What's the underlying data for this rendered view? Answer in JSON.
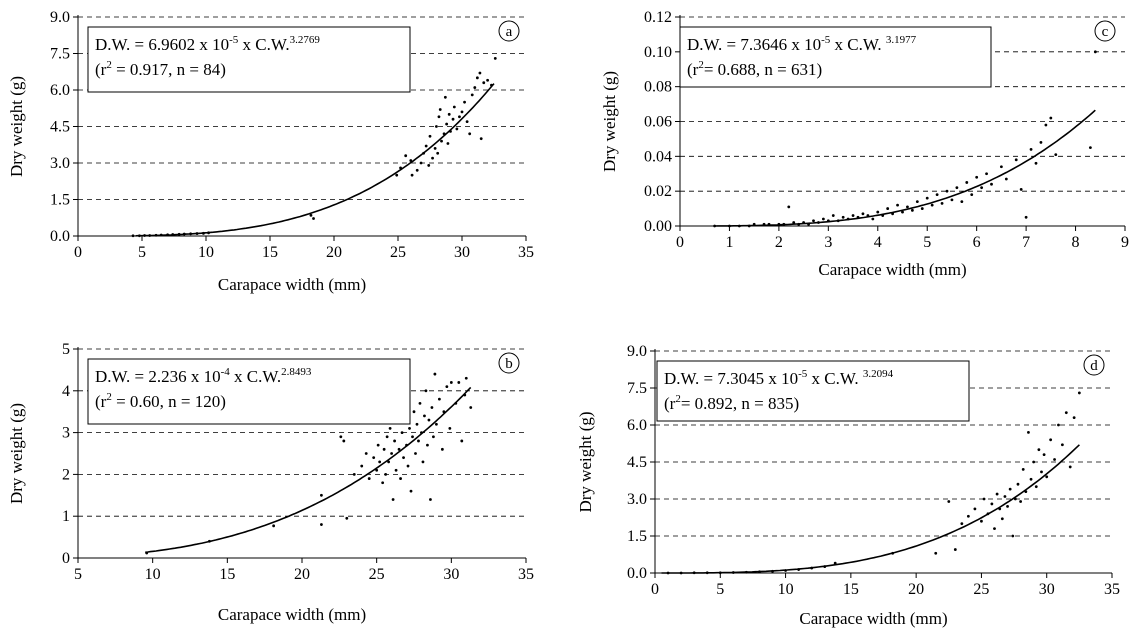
{
  "chart_data": [
    {
      "type": "scatter",
      "panel": "a",
      "xlabel": "Carapace width (mm)",
      "ylabel": "Dry weight (g)",
      "xlim": [
        0,
        35
      ],
      "ylim": [
        0,
        9
      ],
      "xticks": [
        0,
        5,
        10,
        15,
        20,
        25,
        30,
        35
      ],
      "yticks": [
        0.0,
        1.5,
        3.0,
        4.5,
        6.0,
        7.5,
        9.0
      ],
      "ytick_labels": [
        "0.0",
        "1.5",
        "3.0",
        "4.5",
        "6.0",
        "7.5",
        "9.0"
      ],
      "grid": "horizontal-dashed",
      "equation": {
        "line1_pre": "D.W. = 6.9602 x 10",
        "exp1": "-5",
        "line1_mid": " x C.W.",
        "exp2": "3.2769",
        "line2_pre": "(r",
        "exp3": "2",
        "line2_post": " = 0.917, n = 84)"
      },
      "fit": {
        "a": 6.9602e-05,
        "b": 3.2769,
        "x_range": [
          4.5,
          32.5
        ]
      },
      "points": [
        [
          4.3,
          0.01
        ],
        [
          4.8,
          0.01
        ],
        [
          5.2,
          0.02
        ],
        [
          5.6,
          0.02
        ],
        [
          6.1,
          0.03
        ],
        [
          6.5,
          0.04
        ],
        [
          7.0,
          0.05
        ],
        [
          7.4,
          0.06
        ],
        [
          7.9,
          0.07
        ],
        [
          8.3,
          0.08
        ],
        [
          8.8,
          0.09
        ],
        [
          9.3,
          0.1
        ],
        [
          9.8,
          0.11
        ],
        [
          10.2,
          0.13
        ],
        [
          18.2,
          0.85
        ],
        [
          18.4,
          0.72
        ],
        [
          24.9,
          2.5
        ],
        [
          25.2,
          2.8
        ],
        [
          25.6,
          3.3
        ],
        [
          26.0,
          3.1
        ],
        [
          26.1,
          2.5
        ],
        [
          26.5,
          2.7
        ],
        [
          26.8,
          3.0
        ],
        [
          27.0,
          3.4
        ],
        [
          27.2,
          3.7
        ],
        [
          27.4,
          2.9
        ],
        [
          27.5,
          4.1
        ],
        [
          27.7,
          3.2
        ],
        [
          27.9,
          3.6
        ],
        [
          28.0,
          4.5
        ],
        [
          28.1,
          3.4
        ],
        [
          28.2,
          4.9
        ],
        [
          28.3,
          5.2
        ],
        [
          28.4,
          3.9
        ],
        [
          28.6,
          4.2
        ],
        [
          28.7,
          5.7
        ],
        [
          28.8,
          4.6
        ],
        [
          28.9,
          3.8
        ],
        [
          29.0,
          5.0
        ],
        [
          29.1,
          4.3
        ],
        [
          29.3,
          4.8
        ],
        [
          29.4,
          5.3
        ],
        [
          29.6,
          4.4
        ],
        [
          29.8,
          4.9
        ],
        [
          30.0,
          5.1
        ],
        [
          30.2,
          5.5
        ],
        [
          30.4,
          4.7
        ],
        [
          30.6,
          4.2
        ],
        [
          30.8,
          5.8
        ],
        [
          31.0,
          6.1
        ],
        [
          31.2,
          6.5
        ],
        [
          31.4,
          6.7
        ],
        [
          31.5,
          4.0
        ],
        [
          31.7,
          6.3
        ],
        [
          32.0,
          6.4
        ],
        [
          32.3,
          6.2
        ],
        [
          32.6,
          7.3
        ]
      ]
    },
    {
      "type": "scatter",
      "panel": "b",
      "xlabel": "Carapace width (mm)",
      "ylabel": "Dry weight (g)",
      "xlim": [
        5,
        35
      ],
      "ylim": [
        0,
        5
      ],
      "xticks": [
        5,
        10,
        15,
        20,
        25,
        30,
        35
      ],
      "yticks": [
        0,
        1,
        2,
        3,
        4,
        5
      ],
      "ytick_labels": [
        "0",
        "1",
        "2",
        "3",
        "4",
        "5"
      ],
      "grid": "horizontal-dashed",
      "equation": {
        "line1_pre": "D.W. = 2.236 x 10",
        "exp1": "-4",
        "line1_mid": " x C.W.",
        "exp2": "2.8493",
        "line2_pre": "(r",
        "exp3": "2",
        "line2_post": " = 0.60, n = 120)"
      },
      "fit": {
        "a": 0.0002236,
        "b": 2.8493,
        "x_range": [
          9.5,
          31.3
        ]
      },
      "points": [
        [
          9.6,
          0.12
        ],
        [
          13.8,
          0.4
        ],
        [
          18.1,
          0.77
        ],
        [
          21.3,
          0.8
        ],
        [
          21.3,
          1.5
        ],
        [
          22.6,
          2.9
        ],
        [
          22.8,
          2.8
        ],
        [
          23.0,
          0.95
        ],
        [
          23.5,
          2.0
        ],
        [
          24.0,
          2.2
        ],
        [
          24.3,
          2.5
        ],
        [
          24.5,
          1.9
        ],
        [
          24.8,
          2.4
        ],
        [
          25.0,
          2.1
        ],
        [
          25.1,
          2.7
        ],
        [
          25.2,
          2.3
        ],
        [
          25.4,
          1.8
        ],
        [
          25.5,
          2.6
        ],
        [
          25.6,
          2.0
        ],
        [
          25.7,
          2.9
        ],
        [
          25.8,
          2.3
        ],
        [
          25.9,
          3.1
        ],
        [
          26.0,
          2.5
        ],
        [
          26.1,
          1.4
        ],
        [
          26.2,
          2.8
        ],
        [
          26.3,
          2.1
        ],
        [
          26.4,
          3.3
        ],
        [
          26.5,
          2.6
        ],
        [
          26.6,
          1.9
        ],
        [
          26.7,
          3.0
        ],
        [
          26.8,
          2.4
        ],
        [
          26.9,
          3.4
        ],
        [
          27.0,
          2.7
        ],
        [
          27.1,
          2.2
        ],
        [
          27.2,
          3.1
        ],
        [
          27.3,
          1.6
        ],
        [
          27.4,
          2.9
        ],
        [
          27.5,
          3.5
        ],
        [
          27.6,
          2.5
        ],
        [
          27.7,
          3.2
        ],
        [
          27.8,
          2.8
        ],
        [
          27.9,
          3.7
        ],
        [
          28.0,
          3.0
        ],
        [
          28.1,
          2.3
        ],
        [
          28.2,
          3.4
        ],
        [
          28.3,
          4.0
        ],
        [
          28.4,
          2.7
        ],
        [
          28.5,
          3.3
        ],
        [
          28.6,
          1.4
        ],
        [
          28.7,
          3.6
        ],
        [
          28.8,
          2.9
        ],
        [
          28.9,
          4.4
        ],
        [
          29.0,
          3.2
        ],
        [
          29.2,
          3.8
        ],
        [
          29.4,
          2.6
        ],
        [
          29.5,
          3.5
        ],
        [
          29.7,
          4.1
        ],
        [
          29.9,
          3.1
        ],
        [
          30.0,
          4.2
        ],
        [
          30.3,
          3.7
        ],
        [
          30.5,
          4.2
        ],
        [
          30.7,
          2.8
        ],
        [
          30.9,
          3.9
        ],
        [
          31.0,
          4.3
        ],
        [
          31.3,
          3.6
        ]
      ]
    },
    {
      "type": "scatter",
      "panel": "c",
      "xlabel": "Carapace width (mm)",
      "ylabel": "Dry weight (g)",
      "xlim": [
        0,
        9
      ],
      "ylim": [
        0,
        0.12
      ],
      "xticks": [
        0,
        1,
        2,
        3,
        4,
        5,
        6,
        7,
        8,
        9
      ],
      "yticks": [
        0,
        0.02,
        0.04,
        0.06,
        0.08,
        0.1,
        0.12
      ],
      "ytick_labels": [
        "0.00",
        "0.02",
        "0.04",
        "0.06",
        "0.08",
        "0.10",
        "0.12"
      ],
      "grid": "horizontal-dashed",
      "equation": {
        "line1_pre": "D.W. = 7.3646 x 10",
        "exp1": "-5",
        "line1_mid": " x C.W. ",
        "exp2": "3.1977",
        "line2_pre": "(r",
        "exp3": "2",
        "line2_post": "= 0.688, n = 631)"
      },
      "fit": {
        "a": 7.3646e-05,
        "b": 3.1977,
        "x_range": [
          0.7,
          8.4
        ]
      },
      "points": [
        [
          0.7,
          0.0
        ],
        [
          1.0,
          0.0
        ],
        [
          1.2,
          0.0
        ],
        [
          1.4,
          0.0
        ],
        [
          1.5,
          0.001
        ],
        [
          1.7,
          0.001
        ],
        [
          1.8,
          0.001
        ],
        [
          2.0,
          0.001
        ],
        [
          2.1,
          0.001
        ],
        [
          2.2,
          0.011
        ],
        [
          2.3,
          0.002
        ],
        [
          2.4,
          0.001
        ],
        [
          2.5,
          0.002
        ],
        [
          2.6,
          0.001
        ],
        [
          2.7,
          0.003
        ],
        [
          2.8,
          0.002
        ],
        [
          2.9,
          0.004
        ],
        [
          3.0,
          0.003
        ],
        [
          3.1,
          0.006
        ],
        [
          3.2,
          0.003
        ],
        [
          3.3,
          0.005
        ],
        [
          3.4,
          0.004
        ],
        [
          3.5,
          0.006
        ],
        [
          3.6,
          0.005
        ],
        [
          3.7,
          0.007
        ],
        [
          3.8,
          0.006
        ],
        [
          3.9,
          0.004
        ],
        [
          4.0,
          0.008
        ],
        [
          4.1,
          0.006
        ],
        [
          4.2,
          0.01
        ],
        [
          4.3,
          0.007
        ],
        [
          4.4,
          0.012
        ],
        [
          4.5,
          0.008
        ],
        [
          4.6,
          0.011
        ],
        [
          4.7,
          0.009
        ],
        [
          4.8,
          0.014
        ],
        [
          4.9,
          0.01
        ],
        [
          5.0,
          0.016
        ],
        [
          5.1,
          0.012
        ],
        [
          5.2,
          0.018
        ],
        [
          5.3,
          0.013
        ],
        [
          5.4,
          0.02
        ],
        [
          5.5,
          0.015
        ],
        [
          5.6,
          0.022
        ],
        [
          5.7,
          0.014
        ],
        [
          5.8,
          0.025
        ],
        [
          5.9,
          0.018
        ],
        [
          6.0,
          0.028
        ],
        [
          6.1,
          0.022
        ],
        [
          6.2,
          0.03
        ],
        [
          6.3,
          0.024
        ],
        [
          6.5,
          0.034
        ],
        [
          6.6,
          0.027
        ],
        [
          6.8,
          0.038
        ],
        [
          6.9,
          0.021
        ],
        [
          7.0,
          0.005
        ],
        [
          7.1,
          0.044
        ],
        [
          7.2,
          0.036
        ],
        [
          7.3,
          0.048
        ],
        [
          7.4,
          0.058
        ],
        [
          7.5,
          0.062
        ],
        [
          7.6,
          0.041
        ],
        [
          8.3,
          0.045
        ],
        [
          8.4,
          0.1
        ]
      ]
    },
    {
      "type": "scatter",
      "panel": "d",
      "xlabel": "Carapace width (mm)",
      "ylabel": "Dry weight (g)",
      "xlim": [
        0,
        35
      ],
      "ylim": [
        0,
        9
      ],
      "xticks": [
        0,
        5,
        10,
        15,
        20,
        25,
        30,
        35
      ],
      "yticks": [
        0.0,
        1.5,
        3.0,
        4.5,
        6.0,
        7.5,
        9.0
      ],
      "ytick_labels": [
        "0.0",
        "1.5",
        "3.0",
        "4.5",
        "6.0",
        "7.5",
        "9.0"
      ],
      "grid": "horizontal-dashed",
      "equation": {
        "line1_pre": "D.W. = 7.3045 x 10",
        "exp1": "-5",
        "line1_mid": " x C.W. ",
        "exp2": "3.2094",
        "line2_pre": "(r",
        "exp3": "2",
        "line2_post": "= 0.892, n = 835)"
      },
      "fit": {
        "a": 7.3045e-05,
        "b": 3.2094,
        "x_range": [
          0.5,
          32.5
        ]
      },
      "points": [
        [
          1,
          0.0
        ],
        [
          2,
          0.0
        ],
        [
          3,
          0.01
        ],
        [
          4,
          0.01
        ],
        [
          5,
          0.01
        ],
        [
          6,
          0.02
        ],
        [
          7,
          0.03
        ],
        [
          8,
          0.05
        ],
        [
          9,
          0.07
        ],
        [
          10,
          0.1
        ],
        [
          11,
          0.14
        ],
        [
          12,
          0.2
        ],
        [
          13,
          0.26
        ],
        [
          13.8,
          0.4
        ],
        [
          18.2,
          0.8
        ],
        [
          21.5,
          0.8
        ],
        [
          22.5,
          2.9
        ],
        [
          23.0,
          0.95
        ],
        [
          23.5,
          2.0
        ],
        [
          24.0,
          2.3
        ],
        [
          24.5,
          2.6
        ],
        [
          25.0,
          2.1
        ],
        [
          25.2,
          3.0
        ],
        [
          25.5,
          2.4
        ],
        [
          25.8,
          2.8
        ],
        [
          26.0,
          1.8
        ],
        [
          26.2,
          3.2
        ],
        [
          26.4,
          2.6
        ],
        [
          26.6,
          2.2
        ],
        [
          26.8,
          3.1
        ],
        [
          27.0,
          2.7
        ],
        [
          27.2,
          3.4
        ],
        [
          27.4,
          1.5
        ],
        [
          27.6,
          3.0
        ],
        [
          27.8,
          3.6
        ],
        [
          28.0,
          2.9
        ],
        [
          28.2,
          4.2
        ],
        [
          28.4,
          3.3
        ],
        [
          28.6,
          5.7
        ],
        [
          28.8,
          3.8
        ],
        [
          29.0,
          4.5
        ],
        [
          29.2,
          3.5
        ],
        [
          29.4,
          5.0
        ],
        [
          29.6,
          4.1
        ],
        [
          29.8,
          4.8
        ],
        [
          30.0,
          3.9
        ],
        [
          30.3,
          5.4
        ],
        [
          30.6,
          4.6
        ],
        [
          30.9,
          6.0
        ],
        [
          31.2,
          5.2
        ],
        [
          31.5,
          6.5
        ],
        [
          31.8,
          4.3
        ],
        [
          32.1,
          6.3
        ],
        [
          32.5,
          7.3
        ]
      ]
    }
  ]
}
